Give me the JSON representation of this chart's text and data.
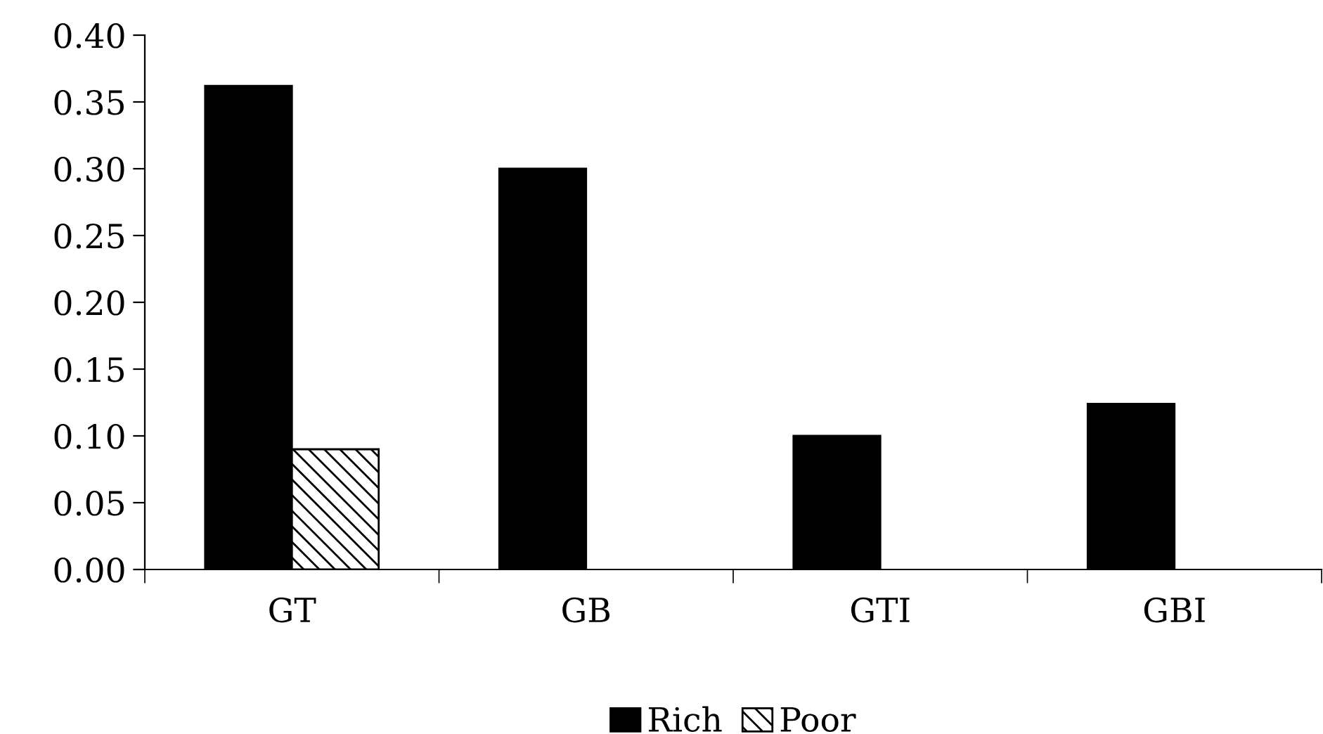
{
  "chart_data": {
    "type": "bar",
    "categories": [
      "GT",
      "GB",
      "GTI",
      "GBI"
    ],
    "series": [
      {
        "name": "Rich",
        "color": "#000000",
        "values": [
          0.362,
          0.3,
          0.1,
          0.124
        ]
      },
      {
        "name": "Poor",
        "color": "#000000",
        "values": [
          0.09,
          null,
          null,
          null
        ]
      }
    ],
    "ylim": [
      0,
      0.4
    ],
    "yticks": [
      {
        "value": 0,
        "label": "0.00"
      },
      {
        "value": 0.05,
        "label": "0.05"
      },
      {
        "value": 0.1,
        "label": "0.10"
      },
      {
        "value": 0.15,
        "label": "0.15"
      },
      {
        "value": 0.2,
        "label": "0.20"
      },
      {
        "value": 0.25,
        "label": "0.25"
      },
      {
        "value": 0.3,
        "label": "0.30"
      },
      {
        "value": 0.35,
        "label": "0.35"
      },
      {
        "value": 0.4,
        "label": "0.40"
      }
    ],
    "grid": false,
    "legend": "bottom"
  }
}
